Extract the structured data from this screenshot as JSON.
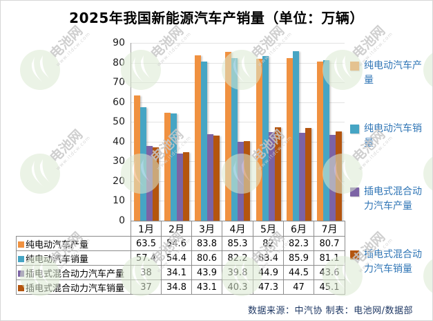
{
  "title": "2025年我国新能源汽车产销量（单位：万辆）",
  "source_note": "数据来源：中汽协  制表：电池网/数据部",
  "watermark": {
    "brand": "电池网",
    "url_text": "www.itdcw.com"
  },
  "colors": {
    "pure_ev_production": "#f09140",
    "pure_ev_sales": "#46a5c4",
    "phev_production": "#7c63a5",
    "phev_sales": "#b4550e",
    "legend_text": "#2e74b5",
    "source_text": "#1f3864",
    "gridline": "#e2e2e2",
    "table_border": "#8c8c8c"
  },
  "chart_data": {
    "type": "bar",
    "title": "2025年我国新能源汽车产销量（单位：万辆）",
    "categories": [
      "1月",
      "2月",
      "3月",
      "4月",
      "5月",
      "6月",
      "7月"
    ],
    "series": [
      {
        "name": "纯电动汽车产量",
        "color": "#f09140",
        "values": [
          63.5,
          54.6,
          83.8,
          85.3,
          82,
          82.3,
          80.7
        ]
      },
      {
        "name": "纯电动汽车销量",
        "color": "#46a5c4",
        "values": [
          57.4,
          54.4,
          80.6,
          82.2,
          83.4,
          85.9,
          81.1
        ]
      },
      {
        "name": "插电式混合动力汽车产量",
        "color": "#7c63a5",
        "values": [
          38,
          34.1,
          43.9,
          39.8,
          44.9,
          44.5,
          43.6
        ]
      },
      {
        "name": "插电式混合动力汽车销量",
        "color": "#b4550e",
        "values": [
          37,
          34.8,
          43.1,
          40.3,
          47.3,
          47,
          45.1
        ]
      }
    ],
    "xlabel": "",
    "ylabel": "",
    "ylim": [
      0,
      90
    ],
    "ytick_step": 10,
    "grid": true,
    "legend_position": "right",
    "data_table_shown": true
  }
}
